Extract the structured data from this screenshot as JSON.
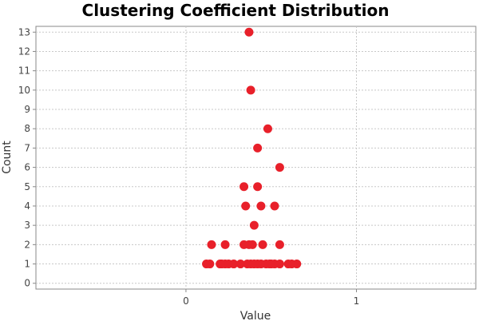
{
  "chart_data": {
    "type": "scatter",
    "title": "Clustering Coefficient Distribution",
    "xlabel": "Value",
    "ylabel": "Count",
    "xlim": [
      -0.88,
      1.7
    ],
    "ylim": [
      -0.3,
      13.3
    ],
    "x_ticks": [
      "0",
      "1"
    ],
    "x_tick_values": [
      0,
      1
    ],
    "y_ticks": [
      "0",
      "1",
      "2",
      "3",
      "4",
      "5",
      "6",
      "7",
      "8",
      "9",
      "10",
      "11",
      "12",
      "13"
    ],
    "y_tick_values": [
      0,
      1,
      2,
      3,
      4,
      5,
      6,
      7,
      8,
      9,
      10,
      11,
      12,
      13
    ],
    "grid": true,
    "marker_color": "#e8202a",
    "series": [
      {
        "points": [
          [
            0.37,
            13
          ],
          [
            0.38,
            10
          ],
          [
            0.48,
            8
          ],
          [
            0.42,
            7
          ],
          [
            0.55,
            6
          ],
          [
            0.34,
            5
          ],
          [
            0.42,
            5
          ],
          [
            0.35,
            4
          ],
          [
            0.44,
            4
          ],
          [
            0.52,
            4
          ],
          [
            0.4,
            3
          ],
          [
            0.15,
            2
          ],
          [
            0.23,
            2
          ],
          [
            0.34,
            2
          ],
          [
            0.37,
            2
          ],
          [
            0.39,
            2
          ],
          [
            0.45,
            2
          ],
          [
            0.55,
            2
          ],
          [
            0.12,
            1
          ],
          [
            0.14,
            1
          ],
          [
            0.2,
            1
          ],
          [
            0.21,
            1
          ],
          [
            0.23,
            1
          ],
          [
            0.25,
            1
          ],
          [
            0.28,
            1
          ],
          [
            0.32,
            1
          ],
          [
            0.36,
            1
          ],
          [
            0.38,
            1
          ],
          [
            0.4,
            1
          ],
          [
            0.42,
            1
          ],
          [
            0.44,
            1
          ],
          [
            0.47,
            1
          ],
          [
            0.49,
            1
          ],
          [
            0.5,
            1
          ],
          [
            0.52,
            1
          ],
          [
            0.55,
            1
          ],
          [
            0.6,
            1
          ],
          [
            0.62,
            1
          ],
          [
            0.65,
            1
          ]
        ]
      }
    ]
  }
}
